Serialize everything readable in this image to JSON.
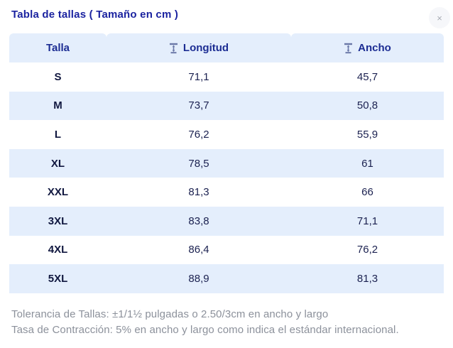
{
  "modal": {
    "title": "Tabla de tallas ( Tamaño en cm )",
    "close_label": "×"
  },
  "table": {
    "columns": [
      {
        "label": "Talla",
        "icon": null
      },
      {
        "label": "Longitud",
        "icon": "height-measure-icon"
      },
      {
        "label": "Ancho",
        "icon": "height-measure-icon"
      }
    ],
    "rows": [
      {
        "talla": "S",
        "longitud": "71,1",
        "ancho": "45,7"
      },
      {
        "talla": "M",
        "longitud": "73,7",
        "ancho": "50,8"
      },
      {
        "talla": "L",
        "longitud": "76,2",
        "ancho": "55,9"
      },
      {
        "talla": "XL",
        "longitud": "78,5",
        "ancho": "61"
      },
      {
        "talla": "XXL",
        "longitud": "81,3",
        "ancho": "66"
      },
      {
        "talla": "3XL",
        "longitud": "83,8",
        "ancho": "71,1"
      },
      {
        "talla": "4XL",
        "longitud": "86,4",
        "ancho": "76,2"
      },
      {
        "talla": "5XL",
        "longitud": "88,9",
        "ancho": "81,3"
      }
    ]
  },
  "footer": {
    "line1": "Tolerancia de Tallas: ±1/1½ pulgadas o 2.50/3cm en ancho y largo",
    "line2": "Tasa de Contracción: 5% en ancho y largo como indica el estándar internacional."
  },
  "colors": {
    "accent_blue": "#1b23a0",
    "header_text_blue": "#1c2d93",
    "row_blue": "#e4eefc",
    "cell_text_navy": "#1b2150",
    "icon_blue_gray": "#6b79a8",
    "footer_gray": "#8c919b"
  }
}
